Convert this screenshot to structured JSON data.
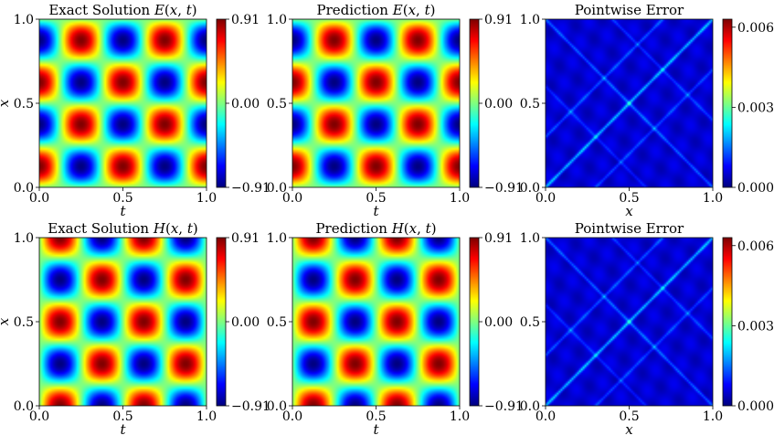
{
  "figure": {
    "layout": "2x3 grid of heatmap panels with colorbars"
  },
  "chart_data": [
    {
      "type": "heatmap",
      "title": "Exact Solution E(x,t)",
      "title_parts": [
        "Exact Solution ",
        "E",
        "(",
        "x",
        ", ",
        "t",
        ")"
      ],
      "xlabel": "t",
      "ylabel": "x",
      "xlim": [
        0.0,
        1.0
      ],
      "ylim": [
        0.0,
        1.0
      ],
      "xticks": [
        "0.0",
        "0.5",
        "1.0"
      ],
      "yticks": [
        "0.0",
        "0.5",
        "1.0"
      ],
      "colormap": "jet",
      "field": {
        "kind": "E",
        "formula": "sin(4*pi*x)*cos(4*pi*t)",
        "vmin": -0.91,
        "vmax": 0.91
      },
      "colorbar": {
        "ticks": [
          0.91,
          0.0,
          -0.91
        ],
        "labels": [
          "0.91",
          "0.00",
          "−0.91"
        ]
      }
    },
    {
      "type": "heatmap",
      "title": "Prediction E(x,t)",
      "title_parts": [
        "Prediction ",
        "E",
        "(",
        "x",
        ", ",
        "t",
        ")"
      ],
      "xlabel": "t",
      "ylabel": "",
      "xlim": [
        0.0,
        1.0
      ],
      "ylim": [
        0.0,
        1.0
      ],
      "xticks": [
        "0.0",
        "0.5",
        "1.0"
      ],
      "yticks": [
        "0.0",
        "0.5",
        "1.0"
      ],
      "colormap": "jet",
      "field": {
        "kind": "E",
        "formula": "sin(4*pi*x)*cos(4*pi*t)",
        "vmin": -0.91,
        "vmax": 0.91
      },
      "colorbar": {
        "ticks": [
          0.91,
          0.0,
          -0.91
        ],
        "labels": [
          "0.91",
          "0.00",
          "−0.91"
        ]
      }
    },
    {
      "type": "heatmap",
      "title": "Pointwise Error",
      "title_parts": [
        "Pointwise Error"
      ],
      "xlabel": "x",
      "ylabel": "",
      "xlim": [
        0.0,
        1.0
      ],
      "ylim": [
        0.0,
        1.0
      ],
      "xticks": [
        "0.0",
        "0.5",
        "1.0"
      ],
      "yticks": [
        "0.0",
        "0.5",
        "1.0"
      ],
      "colormap": "jet",
      "field": {
        "kind": "error",
        "vmin": 0.0,
        "vmax": 0.0063
      },
      "colorbar": {
        "ticks": [
          0.006,
          0.003,
          0.0
        ],
        "labels": [
          "0.006",
          "0.003",
          "0.000"
        ]
      }
    },
    {
      "type": "heatmap",
      "title": "Exact Solution H(x,t)",
      "title_parts": [
        "Exact Solution ",
        "H",
        "(",
        "x",
        ", ",
        "t",
        ")"
      ],
      "xlabel": "t",
      "ylabel": "x",
      "xlim": [
        0.0,
        1.0
      ],
      "ylim": [
        0.0,
        1.0
      ],
      "xticks": [
        "0.0",
        "0.5",
        "1.0"
      ],
      "yticks": [
        "0.0",
        "0.5",
        "1.0"
      ],
      "colormap": "jet",
      "field": {
        "kind": "H",
        "formula": "cos(4*pi*x)*sin(4*pi*t)",
        "vmin": -0.91,
        "vmax": 0.91
      },
      "colorbar": {
        "ticks": [
          0.91,
          0.0,
          -0.91
        ],
        "labels": [
          "0.91",
          "0.00",
          "−0.91"
        ]
      }
    },
    {
      "type": "heatmap",
      "title": "Prediction H(x,t)",
      "title_parts": [
        "Prediction ",
        "H",
        "(",
        "x",
        ", ",
        "t",
        ")"
      ],
      "xlabel": "t",
      "ylabel": "",
      "xlim": [
        0.0,
        1.0
      ],
      "ylim": [
        0.0,
        1.0
      ],
      "xticks": [
        "0.0",
        "0.5",
        "1.0"
      ],
      "yticks": [
        "0.0",
        "0.5",
        "1.0"
      ],
      "colormap": "jet",
      "field": {
        "kind": "H",
        "formula": "cos(4*pi*x)*sin(4*pi*t)",
        "vmin": -0.91,
        "vmax": 0.91
      },
      "colorbar": {
        "ticks": [
          0.91,
          0.0,
          -0.91
        ],
        "labels": [
          "0.91",
          "0.00",
          "−0.91"
        ]
      }
    },
    {
      "type": "heatmap",
      "title": "Pointwise Error",
      "title_parts": [
        "Pointwise Error"
      ],
      "xlabel": "x",
      "ylabel": "",
      "xlim": [
        0.0,
        1.0
      ],
      "ylim": [
        0.0,
        1.0
      ],
      "xticks": [
        "0.0",
        "0.5",
        "1.0"
      ],
      "yticks": [
        "0.0",
        "0.5",
        "1.0"
      ],
      "colormap": "jet",
      "field": {
        "kind": "error",
        "vmin": 0.0,
        "vmax": 0.0063
      },
      "colorbar": {
        "ticks": [
          0.006,
          0.003,
          0.0
        ],
        "labels": [
          "0.006",
          "0.003",
          "0.000"
        ]
      }
    }
  ]
}
